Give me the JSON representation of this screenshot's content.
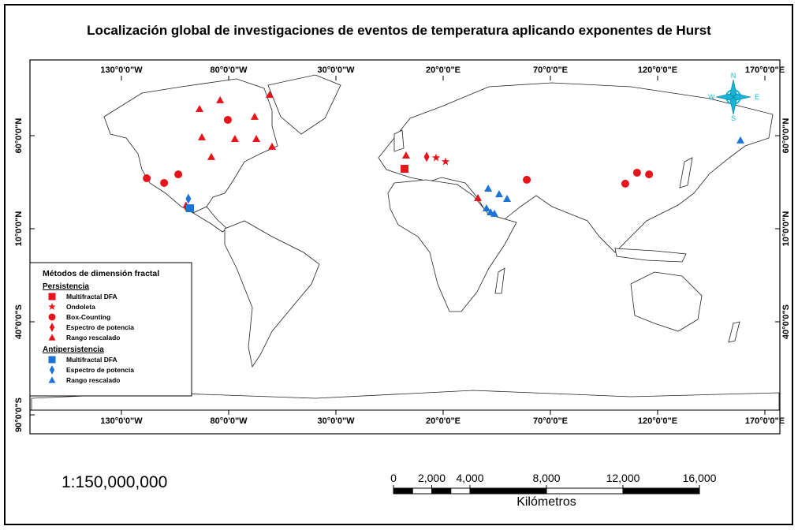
{
  "title": "Localización global de investigaciones de eventos de temperatura aplicando exponentes de Hurst",
  "lon_ticks": [
    {
      "value": -130,
      "label": "130°0'0\"W"
    },
    {
      "value": -80,
      "label": "80°0'0\"W"
    },
    {
      "value": -30,
      "label": "30°0'0\"W"
    },
    {
      "value": 20,
      "label": "20°0'0\"E"
    },
    {
      "value": 70,
      "label": "70°0'0\"E"
    },
    {
      "value": 120,
      "label": "120°0'0\"E"
    },
    {
      "value": 170,
      "label": "170°0'0\"E"
    }
  ],
  "lat_ticks_left": [
    {
      "value": 60,
      "label": "60°0'0\"N"
    },
    {
      "value": 10,
      "label": "10°0'0\"N"
    },
    {
      "value": -40,
      "label": "40°0'0\"S"
    },
    {
      "value": -90,
      "label": "90°0'0\"S"
    }
  ],
  "lat_ticks_right": [
    {
      "value": 60,
      "label": "60°0'0\"N"
    },
    {
      "value": 10,
      "label": "10°0'0\"N"
    },
    {
      "value": -40,
      "label": "40°0'0\"S"
    }
  ],
  "compass": {
    "n": "N",
    "s": "S",
    "e": "E",
    "w": "W"
  },
  "legend": {
    "title": "Métodos de dimensión fractal",
    "groups": [
      {
        "title": "Persistencia",
        "color": "#e8141b",
        "items": [
          {
            "label": "Multifractal DFA",
            "shape": "square"
          },
          {
            "label": "Ondoleta",
            "shape": "star"
          },
          {
            "label": "Box-Counting",
            "shape": "circle"
          },
          {
            "label": "Espectro de potencia",
            "shape": "diamond"
          },
          {
            "label": "Rango rescalado",
            "shape": "triangle"
          }
        ]
      },
      {
        "title": "Antipersistencia",
        "color": "#1c74d6",
        "items": [
          {
            "label": "Multifractal DFA",
            "shape": "square"
          },
          {
            "label": "Espectro de potencia",
            "shape": "diamond"
          },
          {
            "label": "Rango rescalado",
            "shape": "triangle"
          }
        ]
      }
    ]
  },
  "points": [
    {
      "group": 0,
      "item": 4,
      "lon": -60.9,
      "lat": 82.0
    },
    {
      "group": 0,
      "item": 4,
      "lon": -84.0,
      "lat": 79.1
    },
    {
      "group": 0,
      "item": 4,
      "lon": -93.6,
      "lat": 74.4
    },
    {
      "group": 0,
      "item": 4,
      "lon": -67.9,
      "lat": 70.2
    },
    {
      "group": 0,
      "item": 4,
      "lon": -92.5,
      "lat": 59.2
    },
    {
      "group": 0,
      "item": 4,
      "lon": -77.1,
      "lat": 58.3
    },
    {
      "group": 0,
      "item": 4,
      "lon": -67.1,
      "lat": 58.3
    },
    {
      "group": 0,
      "item": 4,
      "lon": -59.8,
      "lat": 54.1
    },
    {
      "group": 0,
      "item": 4,
      "lon": -88.1,
      "lat": 48.6
    },
    {
      "group": 0,
      "item": 4,
      "lon": 2.7,
      "lat": 49.4
    },
    {
      "group": 0,
      "item": 4,
      "lon": 36.2,
      "lat": 26.5
    },
    {
      "group": 0,
      "item": 2,
      "lon": -80.4,
      "lat": 68.5
    },
    {
      "group": 0,
      "item": 2,
      "lon": -118.2,
      "lat": 37.1
    },
    {
      "group": 0,
      "item": 2,
      "lon": -110.1,
      "lat": 34.6
    },
    {
      "group": 0,
      "item": 2,
      "lon": -103.5,
      "lat": 39.2
    },
    {
      "group": 0,
      "item": 2,
      "lon": 59.0,
      "lat": 36.3
    },
    {
      "group": 0,
      "item": 2,
      "lon": 104.9,
      "lat": 34.2
    },
    {
      "group": 0,
      "item": 2,
      "lon": 110.4,
      "lat": 40.1
    },
    {
      "group": 0,
      "item": 2,
      "lon": 116.0,
      "lat": 39.2
    },
    {
      "group": 0,
      "item": 0,
      "lon": 2.0,
      "lat": 42.2
    },
    {
      "group": 0,
      "item": 1,
      "lon": 16.7,
      "lat": 48.1
    },
    {
      "group": 0,
      "item": 1,
      "lon": 21.1,
      "lat": 46.0
    },
    {
      "group": 0,
      "item": 3,
      "lon": 12.3,
      "lat": 48.6
    },
    {
      "group": 0,
      "item": 3,
      "lon": -99.9,
      "lat": 21.9
    },
    {
      "group": 1,
      "item": 0,
      "lon": -98.0,
      "lat": 21.0
    },
    {
      "group": 1,
      "item": 1,
      "lon": -98.8,
      "lat": 26.1
    },
    {
      "group": 1,
      "item": 2,
      "lon": 41.0,
      "lat": 31.6
    },
    {
      "group": 1,
      "item": 2,
      "lon": 46.1,
      "lat": 28.6
    },
    {
      "group": 1,
      "item": 2,
      "lon": 49.8,
      "lat": 26.1
    },
    {
      "group": 1,
      "item": 2,
      "lon": 40.2,
      "lat": 21.0
    },
    {
      "group": 1,
      "item": 2,
      "lon": 42.1,
      "lat": 18.9
    },
    {
      "group": 1,
      "item": 2,
      "lon": 43.9,
      "lat": 18.1
    },
    {
      "group": 1,
      "item": 2,
      "lon": 158.6,
      "lat": 57.5
    }
  ],
  "scale_text": "1:150,000,000",
  "scale_bar": {
    "ticks": [
      0,
      {
        "value": 2000,
        "label": "2,000"
      },
      {
        "value": 4000,
        "label": "4,000"
      },
      {
        "value": 8000,
        "label": "8,000"
      },
      {
        "value": 12000,
        "label": "12,000"
      },
      {
        "value": 16000,
        "label": "16,000"
      }
    ],
    "unit": "Kilómetros"
  }
}
